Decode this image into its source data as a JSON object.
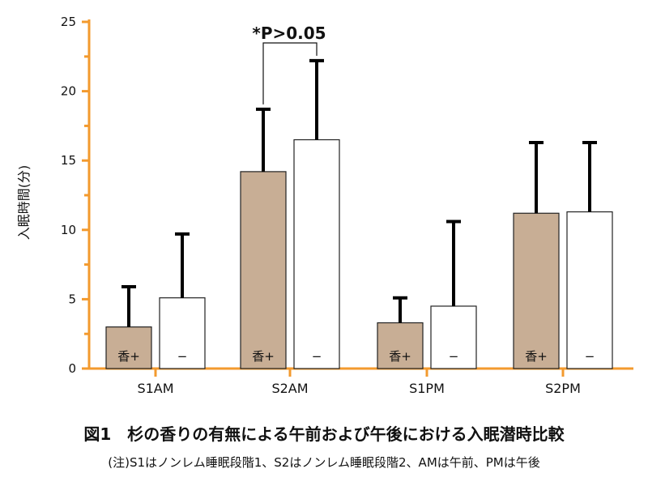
{
  "chart_data": {
    "type": "bar",
    "categories": [
      "S1AM",
      "S2AM",
      "S1PM",
      "S2PM"
    ],
    "series": [
      {
        "label": "香+",
        "values": [
          3.0,
          14.2,
          3.3,
          11.2
        ],
        "errors": [
          2.9,
          4.5,
          1.8,
          5.1
        ]
      },
      {
        "label": "−",
        "values": [
          5.1,
          16.5,
          4.5,
          11.3
        ],
        "errors": [
          4.6,
          5.7,
          6.1,
          5.0
        ]
      }
    ],
    "ylabel": "入眠時間(分)",
    "ylim": [
      0,
      25
    ],
    "yticks": [
      0,
      5,
      10,
      15,
      20,
      25
    ],
    "annotation": {
      "text": "*P>0.05",
      "category": "S2AM"
    },
    "grid": false,
    "colors": {
      "axis": "#f39a2e",
      "bar_filled": "#c8ae95",
      "bar_open": "#ffffff",
      "outline": "#222222",
      "error": "#000000"
    }
  },
  "caption": {
    "title": "図1　杉の香りの有無による午前および午後における入眠潜時比較",
    "note": "(注)S1はノンレム睡眠段階1、S2はノンレム睡眠段階2、AMは午前、PMは午後"
  }
}
